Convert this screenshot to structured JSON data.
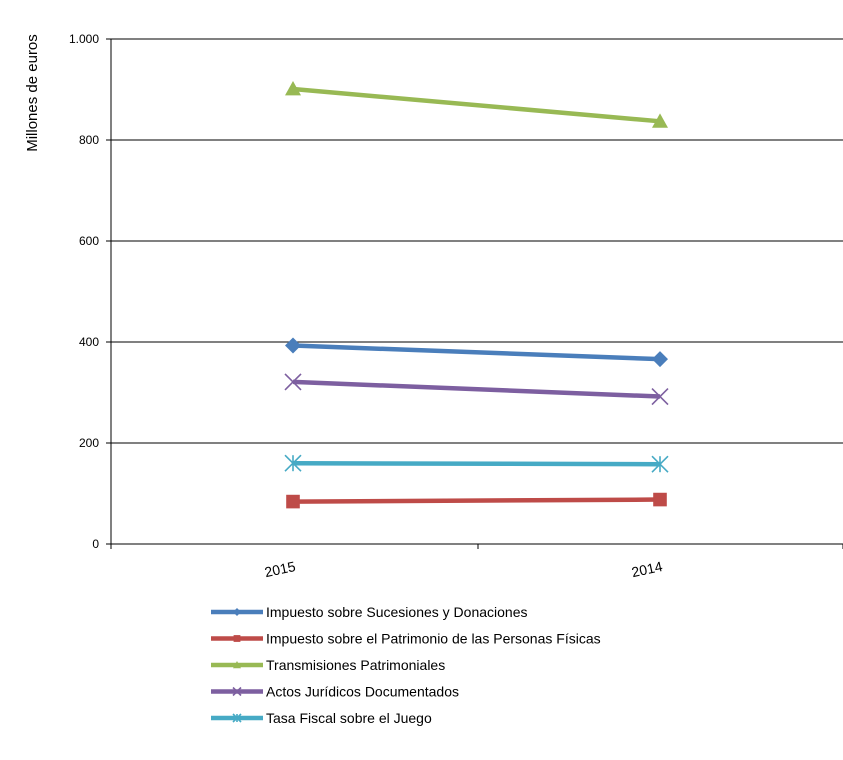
{
  "chart_data": {
    "type": "line",
    "title": "",
    "xlabel": "",
    "ylabel": "Millones de euros",
    "categories": [
      "2015",
      "2014"
    ],
    "ylim": [
      0,
      1000
    ],
    "yticks": [
      0,
      200,
      400,
      600,
      800,
      1000
    ],
    "ytick_labels": [
      "0",
      "200",
      "400",
      "600",
      "800",
      "1.000"
    ],
    "grid": true,
    "legend_position": "bottom",
    "series": [
      {
        "name": "Impuesto sobre Sucesiones y Donaciones",
        "values": [
          393,
          366
        ],
        "color": "#4a7ebb",
        "marker": "diamond"
      },
      {
        "name": "Impuesto sobre el Patrimonio de las Personas Físicas",
        "values": [
          84,
          88
        ],
        "color": "#be4b48",
        "marker": "square"
      },
      {
        "name": "Transmisiones Patrimoniales",
        "values": [
          901,
          837
        ],
        "color": "#98b954",
        "marker": "triangle"
      },
      {
        "name": "Actos Jurídicos Documentados",
        "values": [
          321,
          292
        ],
        "color": "#7d5fa0",
        "marker": "x"
      },
      {
        "name": "Tasa Fiscal sobre el Juego",
        "values": [
          160,
          158
        ],
        "color": "#46aac5",
        "marker": "star"
      }
    ]
  }
}
